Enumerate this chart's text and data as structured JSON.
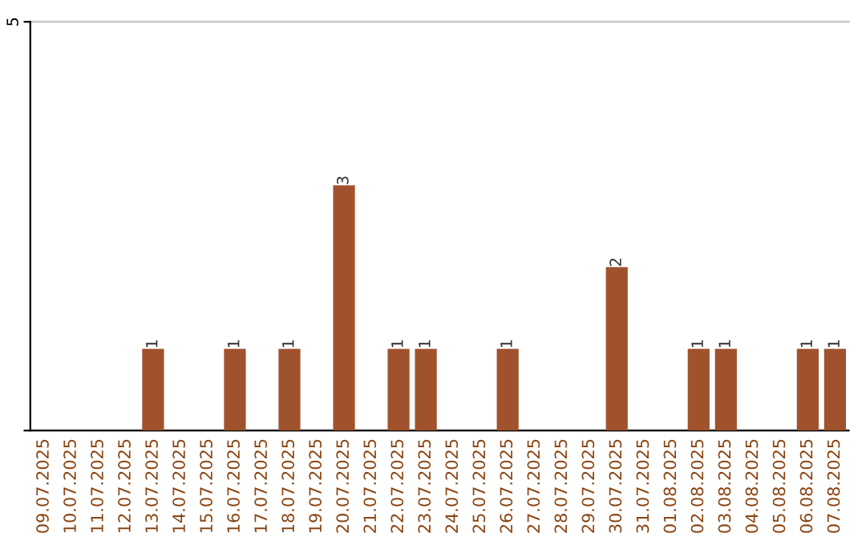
{
  "chart_data": {
    "type": "bar",
    "categories": [
      "09.07.2025",
      "10.07.2025",
      "11.07.2025",
      "12.07.2025",
      "13.07.2025",
      "14.07.2025",
      "15.07.2025",
      "16.07.2025",
      "17.07.2025",
      "18.07.2025",
      "19.07.2025",
      "20.07.2025",
      "21.07.2025",
      "22.07.2025",
      "23.07.2025",
      "24.07.2025",
      "25.07.2025",
      "26.07.2025",
      "27.07.2025",
      "28.07.2025",
      "29.07.2025",
      "30.07.2025",
      "31.07.2025",
      "01.08.2025",
      "02.08.2025",
      "03.08.2025",
      "04.08.2025",
      "05.08.2025",
      "06.08.2025",
      "07.08.2025"
    ],
    "values": [
      0,
      0,
      0,
      0,
      1,
      0,
      0,
      1,
      0,
      1,
      0,
      3,
      0,
      1,
      1,
      0,
      0,
      1,
      0,
      0,
      0,
      2,
      0,
      0,
      1,
      1,
      0,
      0,
      1,
      1
    ],
    "value_labels": [
      null,
      null,
      null,
      null,
      "1",
      null,
      null,
      "1",
      null,
      "1",
      null,
      "3",
      null,
      "1",
      "1",
      null,
      null,
      "1",
      null,
      null,
      null,
      "2",
      null,
      null,
      "1",
      "1",
      null,
      null,
      "1",
      "1"
    ],
    "color": "#a0522d",
    "ylim": [
      0,
      5
    ],
    "yticks": [
      {
        "value": 0,
        "label": null
      },
      5
    ],
    "grid": "y"
  }
}
